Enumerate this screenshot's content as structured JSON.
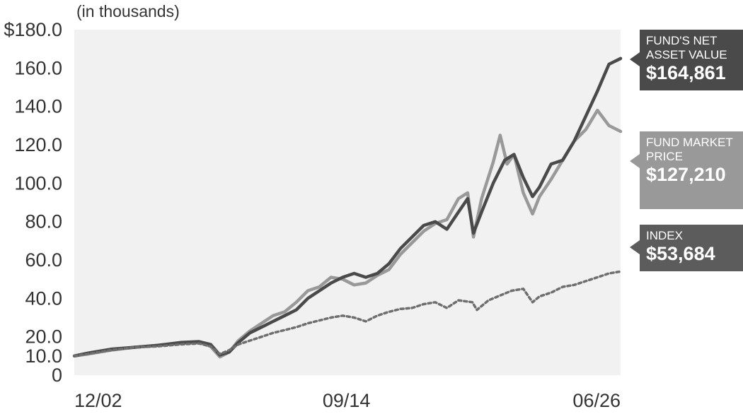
{
  "chart_data": {
    "type": "line",
    "unit_label": "(in thousands)",
    "ylim": [
      0,
      180
    ],
    "yticks": [
      {
        "value": 0,
        "label": "0"
      },
      {
        "value": 10,
        "label": "10.0"
      },
      {
        "value": 20,
        "label": "20.0"
      },
      {
        "value": 40,
        "label": "40.0"
      },
      {
        "value": 60,
        "label": "60.0"
      },
      {
        "value": 80,
        "label": "80.0"
      },
      {
        "value": 100,
        "label": "100.0"
      },
      {
        "value": 120,
        "label": "120.0"
      },
      {
        "value": 140,
        "label": "140.0"
      },
      {
        "value": 160,
        "label": "160.0"
      },
      {
        "value": 180,
        "label": "$180.0"
      }
    ],
    "xlim": [
      2002.917,
      2026.5
    ],
    "xticks": [
      {
        "value": 2002.917,
        "label": "12/02"
      },
      {
        "value": 2014.667,
        "label": "09/14"
      },
      {
        "value": 2026.5,
        "label": "06/26"
      }
    ],
    "grid": false,
    "colors": {
      "nav": "#4a4a4a",
      "market": "#999999",
      "index": "#6e6e6e",
      "plot_bg": "#f0f1f0"
    },
    "series": [
      {
        "name": "FUND'S NET ASSET VALUE",
        "value_label": "$164,861",
        "points": [
          [
            2002.92,
            10
          ],
          [
            2003.5,
            11.5
          ],
          [
            2004.5,
            13.5
          ],
          [
            2005.5,
            14.5
          ],
          [
            2006.5,
            15.5
          ],
          [
            2007.5,
            17
          ],
          [
            2008.3,
            17.5
          ],
          [
            2008.8,
            16
          ],
          [
            2009.2,
            10.5
          ],
          [
            2009.6,
            12
          ],
          [
            2010,
            17
          ],
          [
            2010.5,
            22
          ],
          [
            2011,
            25
          ],
          [
            2011.5,
            28
          ],
          [
            2012,
            31
          ],
          [
            2012.5,
            34
          ],
          [
            2013,
            40
          ],
          [
            2013.5,
            44
          ],
          [
            2014,
            48
          ],
          [
            2014.5,
            51
          ],
          [
            2015,
            53
          ],
          [
            2015.5,
            51
          ],
          [
            2016,
            53
          ],
          [
            2016.5,
            58
          ],
          [
            2017,
            66
          ],
          [
            2017.5,
            72
          ],
          [
            2018,
            78
          ],
          [
            2018.5,
            80
          ],
          [
            2019,
            76
          ],
          [
            2019.5,
            85
          ],
          [
            2019.9,
            92
          ],
          [
            2020.15,
            74
          ],
          [
            2020.5,
            85
          ],
          [
            2021,
            100
          ],
          [
            2021.5,
            112
          ],
          [
            2021.9,
            115
          ],
          [
            2022.3,
            103
          ],
          [
            2022.7,
            93
          ],
          [
            2023,
            98
          ],
          [
            2023.5,
            110
          ],
          [
            2024,
            112
          ],
          [
            2024.5,
            122
          ],
          [
            2025,
            135
          ],
          [
            2025.5,
            148
          ],
          [
            2026,
            162
          ],
          [
            2026.5,
            165
          ]
        ]
      },
      {
        "name": "FUND MARKET PRICE",
        "value_label": "$127,210",
        "points": [
          [
            2002.92,
            10
          ],
          [
            2003.5,
            11
          ],
          [
            2004.5,
            13
          ],
          [
            2005.5,
            14.5
          ],
          [
            2006.5,
            15.5
          ],
          [
            2007.5,
            16.5
          ],
          [
            2008.3,
            17
          ],
          [
            2008.8,
            15
          ],
          [
            2009.2,
            9.5
          ],
          [
            2009.6,
            12
          ],
          [
            2010,
            18
          ],
          [
            2010.5,
            23
          ],
          [
            2011,
            27
          ],
          [
            2011.5,
            31
          ],
          [
            2012,
            33
          ],
          [
            2012.5,
            38
          ],
          [
            2013,
            44
          ],
          [
            2013.5,
            46
          ],
          [
            2014,
            51
          ],
          [
            2014.5,
            50
          ],
          [
            2015,
            47
          ],
          [
            2015.5,
            48
          ],
          [
            2016,
            52
          ],
          [
            2016.5,
            55
          ],
          [
            2017,
            63
          ],
          [
            2017.5,
            69
          ],
          [
            2018,
            75
          ],
          [
            2018.5,
            79
          ],
          [
            2019,
            81
          ],
          [
            2019.5,
            92
          ],
          [
            2019.9,
            95
          ],
          [
            2020.15,
            72
          ],
          [
            2020.5,
            92
          ],
          [
            2021,
            111
          ],
          [
            2021.3,
            125
          ],
          [
            2021.6,
            110
          ],
          [
            2021.9,
            115
          ],
          [
            2022.3,
            95
          ],
          [
            2022.7,
            84
          ],
          [
            2023,
            93
          ],
          [
            2023.5,
            102
          ],
          [
            2024,
            112
          ],
          [
            2024.5,
            122
          ],
          [
            2025,
            128
          ],
          [
            2025.5,
            138
          ],
          [
            2026,
            130
          ],
          [
            2026.5,
            127
          ]
        ]
      },
      {
        "name": "INDEX",
        "value_label": "$53,684",
        "points": [
          [
            2002.92,
            10
          ],
          [
            2003.5,
            11
          ],
          [
            2004.5,
            13
          ],
          [
            2005.5,
            14.5
          ],
          [
            2006.5,
            15
          ],
          [
            2007.5,
            16
          ],
          [
            2008.3,
            16.5
          ],
          [
            2008.8,
            15
          ],
          [
            2009.2,
            11
          ],
          [
            2009.6,
            13
          ],
          [
            2010,
            16
          ],
          [
            2010.5,
            18
          ],
          [
            2011,
            20
          ],
          [
            2011.5,
            22
          ],
          [
            2012,
            23.5
          ],
          [
            2012.5,
            25
          ],
          [
            2013,
            27
          ],
          [
            2013.5,
            28.5
          ],
          [
            2014,
            30
          ],
          [
            2014.5,
            31
          ],
          [
            2015,
            30
          ],
          [
            2015.5,
            28
          ],
          [
            2016,
            31
          ],
          [
            2016.5,
            33
          ],
          [
            2017,
            34.5
          ],
          [
            2017.5,
            35
          ],
          [
            2018,
            37
          ],
          [
            2018.5,
            38
          ],
          [
            2019,
            35
          ],
          [
            2019.5,
            39
          ],
          [
            2020.1,
            38
          ],
          [
            2020.3,
            34
          ],
          [
            2020.8,
            39
          ],
          [
            2021.2,
            41
          ],
          [
            2021.8,
            44
          ],
          [
            2022.3,
            45
          ],
          [
            2022.7,
            38
          ],
          [
            2023,
            41
          ],
          [
            2023.5,
            43
          ],
          [
            2024,
            46
          ],
          [
            2024.5,
            47
          ],
          [
            2025,
            49
          ],
          [
            2025.5,
            51
          ],
          [
            2026,
            53
          ],
          [
            2026.5,
            54
          ]
        ]
      }
    ]
  }
}
